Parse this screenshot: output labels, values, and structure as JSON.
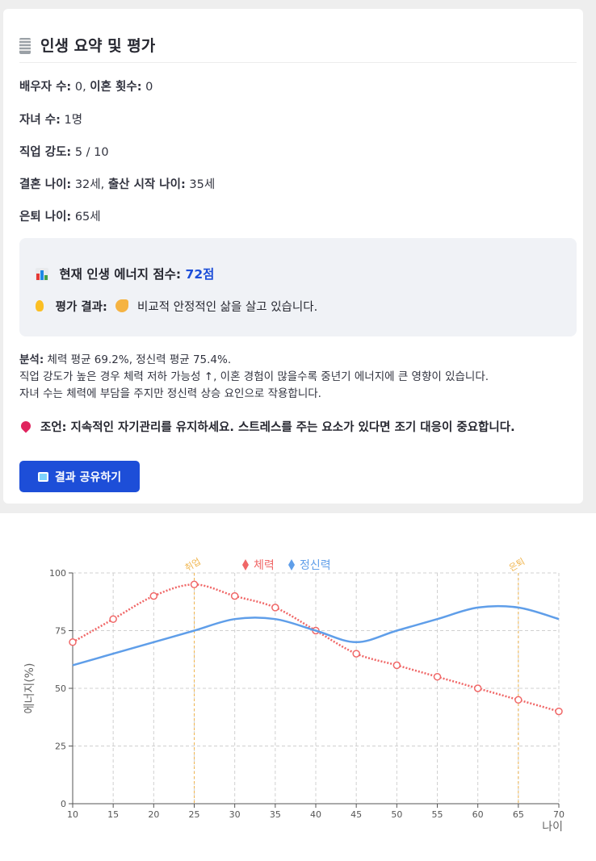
{
  "summary": {
    "title": "인생 요약 및 평가",
    "spouse_label": "배우자 수:",
    "spouse_value": "0",
    "divorce_label": "이혼 횟수:",
    "divorce_value": "0",
    "children_label": "자녀 수:",
    "children_value": "1명",
    "job_intensity_label": "직업 강도:",
    "job_intensity_value": "5 / 10",
    "marriage_age_label": "결혼 나이:",
    "marriage_age_value": "32세",
    "birth_age_label": "출산 시작 나이:",
    "birth_age_value": "35세",
    "retire_age_label": "은퇴 나이:",
    "retire_age_value": "65세"
  },
  "evaluation": {
    "score_label": "현재 인생 에너지 점수:",
    "score_value": "72점",
    "result_label": "평가 결과:",
    "result_text": "비교적 안정적인 삶을 살고 있습니다.",
    "score_color": "#1c4ed8"
  },
  "analysis": {
    "label": "분석:",
    "line1": "체력 평균 69.2%, 정신력 평균 75.4%.",
    "line2": "직업 강도가 높은 경우 체력 저하 가능성 ↑, 이혼 경험이 많을수록 중년기 에너지에 큰 영향이 있습니다.",
    "line3": "자녀 수는 체력에 부담을 주지만 정신력 상승 요인으로 작용합니다."
  },
  "advice": {
    "label": "조언:",
    "text": "지속적인 자기관리를 유지하세요. 스트레스를 주는 요소가 있다면 조기 대응이 중요합니다."
  },
  "share_button": {
    "label": "결과 공유하기",
    "icon": "inbox-tray-icon",
    "color": "#1d4ed8"
  },
  "chart_data": {
    "type": "line",
    "xlabel": "나이",
    "ylabel": "에너지(%)",
    "xlim": [
      10,
      70
    ],
    "ylim": [
      0,
      100
    ],
    "x_ticks": [
      10,
      15,
      20,
      25,
      30,
      35,
      40,
      45,
      50,
      55,
      60,
      65,
      70
    ],
    "y_ticks": [
      0,
      25,
      50,
      75,
      100
    ],
    "grid": true,
    "legend_placement": "top-center",
    "x": [
      10,
      15,
      20,
      25,
      30,
      35,
      40,
      45,
      50,
      55,
      60,
      65,
      70
    ],
    "series": [
      {
        "name": "체력",
        "color": "#f06767",
        "style": "dotted-with-markers",
        "values": [
          70,
          80,
          90,
          95,
          90,
          85,
          75,
          65,
          60,
          55,
          50,
          45,
          40
        ]
      },
      {
        "name": "정신력",
        "color": "#5f9ee9",
        "style": "solid-smooth",
        "values": [
          60,
          65,
          70,
          75,
          80,
          80,
          75,
          70,
          75,
          80,
          85,
          85,
          80
        ]
      }
    ],
    "annotations": [
      {
        "x": 25,
        "label": "취업",
        "color": "#f0b44c"
      },
      {
        "x": 65,
        "label": "은퇴",
        "color": "#f0b44c"
      }
    ]
  }
}
